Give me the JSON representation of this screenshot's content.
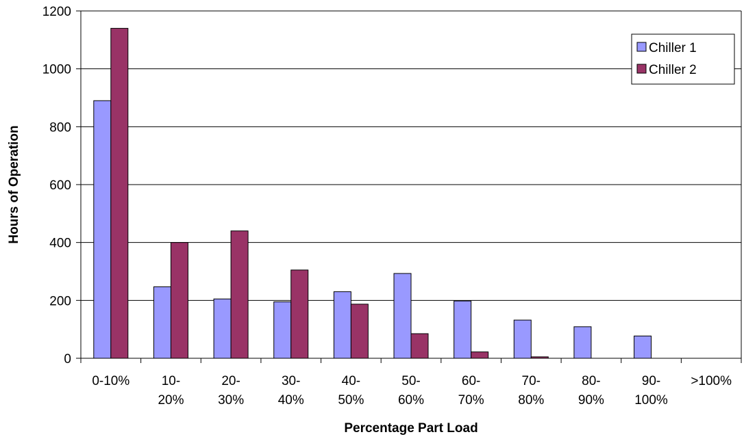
{
  "chart_data": {
    "type": "bar",
    "title": "",
    "xlabel": "Percentage Part Load",
    "ylabel": "Hours of Operation",
    "categories": [
      [
        "0-10%"
      ],
      [
        "10-",
        "20%"
      ],
      [
        "20-",
        "30%"
      ],
      [
        "30-",
        "40%"
      ],
      [
        "40-",
        "50%"
      ],
      [
        "50-",
        "60%"
      ],
      [
        "60-",
        "70%"
      ],
      [
        "70-",
        "80%"
      ],
      [
        "80-",
        "90%"
      ],
      [
        "90-",
        "100%"
      ],
      [
        ">100%"
      ]
    ],
    "series": [
      {
        "name": "Chiller 1",
        "color": "#9999ff",
        "values": [
          890,
          247,
          205,
          195,
          230,
          293,
          198,
          132,
          109,
          77,
          0
        ]
      },
      {
        "name": "Chiller 2",
        "color": "#993366",
        "values": [
          1140,
          400,
          440,
          305,
          187,
          85,
          22,
          5,
          0,
          0,
          0
        ]
      }
    ],
    "ylim": [
      0,
      1200
    ],
    "yticks": [
      0,
      200,
      400,
      600,
      800,
      1000,
      1200
    ],
    "grid": true,
    "legend_position": "top-right"
  }
}
